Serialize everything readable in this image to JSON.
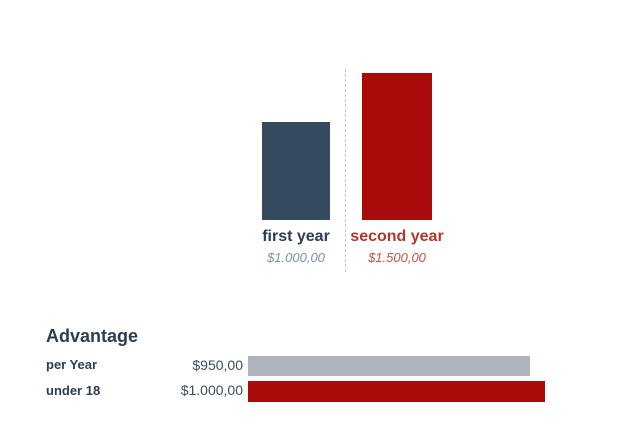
{
  "chart_data": [
    {
      "type": "bar",
      "orientation": "vertical",
      "title": "",
      "categories": [
        "first year",
        "second year"
      ],
      "values": [
        1000,
        1500
      ],
      "value_labels": [
        "$1.000,00",
        "$1.500,00"
      ],
      "bar_colors": [
        "#364a5f",
        "#a90b0b"
      ],
      "category_label_colors": [
        "#2c3e50",
        "#b1362b"
      ],
      "value_label_colors": [
        "#7d90a8",
        "#c35149"
      ],
      "ylim": [
        0,
        1500
      ],
      "grid": false,
      "legend": "none",
      "divider": "vertical dashed light-gray line between the two bars"
    },
    {
      "type": "bar",
      "orientation": "horizontal",
      "title": "Advantage",
      "categories": [
        "per Year",
        "under 18"
      ],
      "values": [
        950,
        1000
      ],
      "value_labels": [
        "$950,00",
        "$1.000,00"
      ],
      "bar_colors": [
        "#aeb5bd",
        "#a90b0b"
      ],
      "xlim": [
        0,
        1000
      ],
      "grid": false,
      "legend": "none"
    }
  ],
  "colors": {
    "background": "#ffffff",
    "navy_text": "#2c3e50",
    "blue_bar": "#364a5f",
    "red_bar": "#a90b0b",
    "red_label": "#b1362b",
    "red_value_italic": "#c35149",
    "blue_value_italic": "#7d90a8",
    "gray_bar": "#aeb5bd",
    "row_value_text": "#3c4d60",
    "dashed_divider": "#c6c6c6"
  }
}
